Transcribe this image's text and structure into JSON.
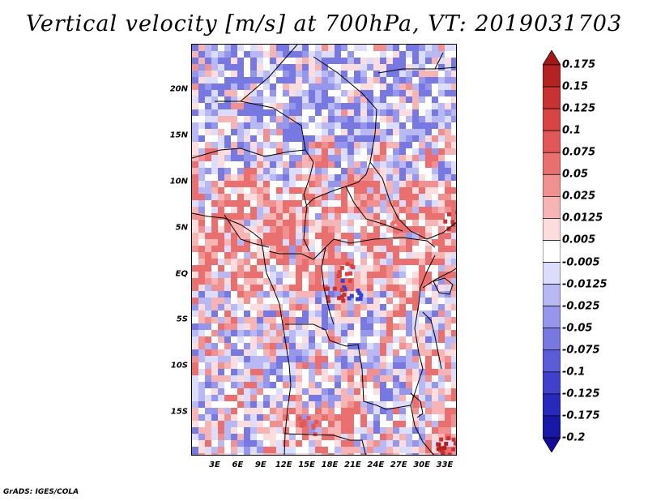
{
  "title": "Vertical velocity [m/s] at 700hPa, VT: 2019031703",
  "credit": "GrADS: IGES/COLA",
  "map": {
    "lat_labels": [
      "20N",
      "15N",
      "10N",
      "5N",
      "EQ",
      "5S",
      "10S",
      "15S"
    ],
    "lon_labels": [
      "3E",
      "6E",
      "9E",
      "12E",
      "15E",
      "18E",
      "21E",
      "24E",
      "27E",
      "30E",
      "33E"
    ],
    "field": "vertical-velocity-shading"
  },
  "colorbar": {
    "labels": [
      "0.175",
      "0.15",
      "0.125",
      "0.1",
      "0.075",
      "0.05",
      "0.025",
      "0.0125",
      "0.005",
      "-0.005",
      "-0.0125",
      "-0.025",
      "-0.05",
      "-0.075",
      "-0.1",
      "-0.125",
      "-0.175",
      "-0.2"
    ],
    "colors": [
      "#a01818",
      "#b42222",
      "#c83232",
      "#d84444",
      "#e25858",
      "#ea7070",
      "#f19090",
      "#f7b4b4",
      "#fcdcdc",
      "#ffffff",
      "#dcdcfc",
      "#b8b8f4",
      "#9696ec",
      "#7878e2",
      "#5c5cd8",
      "#4040cc",
      "#2828bc",
      "#1818a8",
      "#120c96"
    ]
  }
}
